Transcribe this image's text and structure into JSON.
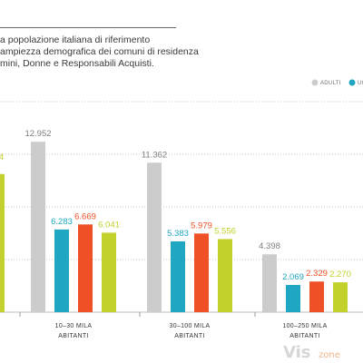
{
  "description": {
    "line1": "a popolazione italiana di riferimento",
    "line2": "ampiezza demografica dei comuni di residenza",
    "line3": "mini, Donne e Responsabili Acquisti."
  },
  "watermark": {
    "text1": "Vis",
    "text2": "zone"
  },
  "chart_data": {
    "type": "bar",
    "title": "",
    "xlabel": "",
    "ylabel": "",
    "ylim": [
      0,
      16
    ],
    "grid": true,
    "legend_position": "top-right",
    "categories": [
      [
        "10–30 MILA",
        "ABITANTI"
      ],
      [
        "30–100 MILA",
        "ABITANTI"
      ],
      [
        "100–250 MILA",
        "ABITANTI"
      ]
    ],
    "series": [
      {
        "name": "ADULTI",
        "color": "#cccccc",
        "values": [
          12.952,
          11.362,
          4.398
        ],
        "labels": [
          "12.952",
          "11.362",
          "4.398"
        ]
      },
      {
        "name": "UO",
        "color": "#1fa6c2",
        "values": [
          6.283,
          5.383,
          2.069
        ],
        "labels": [
          "6.283",
          "5.383",
          "2.069"
        ]
      },
      {
        "name": "",
        "color": "#ef5126",
        "values": [
          6.669,
          5.979,
          2.329
        ],
        "labels": [
          "6.669",
          "5.979",
          "2.329"
        ]
      },
      {
        "name": "",
        "color": "#c3d12d",
        "values": [
          6.041,
          5.556,
          2.27
        ],
        "labels": [
          "6.041",
          "5.556",
          "2.270"
        ]
      }
    ],
    "partial_left_group": {
      "visible_series": [
        3
      ],
      "values": [
        10.5
      ],
      "label_fragment": "4"
    }
  }
}
